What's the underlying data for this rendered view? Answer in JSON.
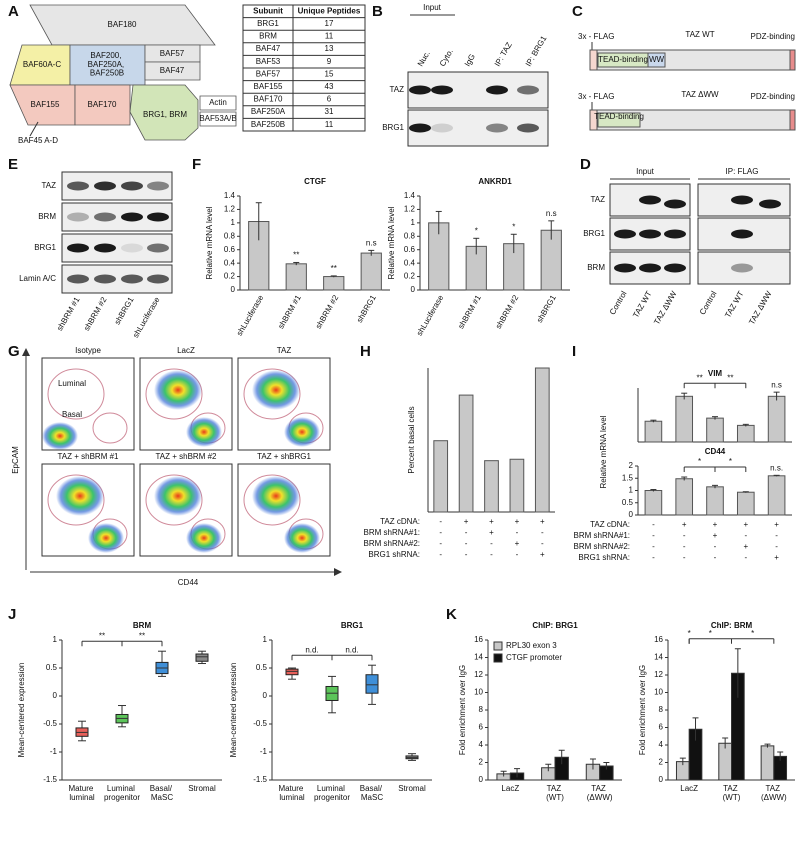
{
  "panel_labels": [
    "A",
    "B",
    "C",
    "D",
    "E",
    "F",
    "G",
    "H",
    "I",
    "J",
    "K"
  ],
  "A": {
    "complex_subunits": [
      "BAF180",
      "BAF60A-C",
      "BAF200, BAF250A, BAF250B",
      "BAF57",
      "BAF47",
      "BAF155",
      "BAF170",
      "BRG1, BRM",
      "Actin",
      "BAF53A/B",
      "BAF45 A-D"
    ],
    "table": {
      "header": [
        "Subunit",
        "Unique Peptides"
      ],
      "rows": [
        [
          "BRG1",
          17
        ],
        [
          "BRM",
          11
        ],
        [
          "BAF47",
          13
        ],
        [
          "BAF53",
          9
        ],
        [
          "BAF57",
          15
        ],
        [
          "BAF155",
          43
        ],
        [
          "BAF170",
          6
        ],
        [
          "BAF250A",
          31
        ],
        [
          "BAF250B",
          11
        ]
      ]
    }
  },
  "B": {
    "input": "Input",
    "lanes": [
      "Nuc.",
      "Cyto.",
      "IgG",
      "IP: TAZ",
      "IP: BRG1"
    ],
    "rows": [
      "TAZ",
      "BRG1"
    ]
  },
  "C": {
    "constructs": [
      {
        "name": "TAZ WT",
        "flag": "3x - FLAG",
        "domains": [
          "TEAD-binding",
          "WW"
        ],
        "end": "PDZ-binding"
      },
      {
        "name": "TAZ ΔWW",
        "flag": "3x - FLAG",
        "domains": [
          "TEAD-binding"
        ],
        "end": "PDZ-binding"
      }
    ]
  },
  "D": {
    "groups": [
      "Input",
      "IP: FLAG"
    ],
    "rows": [
      "TAZ",
      "BRG1",
      "BRM"
    ],
    "lanes": [
      "Control",
      "TAZ WT",
      "TAZ ΔWW",
      "Control",
      "TAZ WT",
      "TAZ ΔWW"
    ]
  },
  "E": {
    "rows": [
      "TAZ",
      "BRM",
      "BRG1",
      "Lamin A/C"
    ],
    "lanes": [
      "shBRM #1",
      "shBRM #2",
      "shBRG1",
      "shLuciferase"
    ]
  },
  "F": {
    "charts": [
      {
        "type": "bar",
        "title": "CTGF",
        "ylabel": "Relative mRNA level",
        "categories": [
          "shLuciferase",
          "shBRM #1",
          "shBRM #2",
          "shBRG1"
        ],
        "values": [
          1.02,
          0.39,
          0.2,
          0.55
        ],
        "errors": [
          0.28,
          0.02,
          0.01,
          0.04
        ],
        "annotations": [
          null,
          "**",
          "**",
          "n.s"
        ],
        "color": "#c8c8c8",
        "ylim": [
          0,
          1.4
        ],
        "yticks": [
          0,
          0.2,
          0.4,
          0.6,
          0.8,
          1,
          1.2,
          1.4
        ]
      },
      {
        "type": "bar",
        "title": "ANKRD1",
        "ylabel": "Relative mRNA level",
        "categories": [
          "shLuciferase",
          "shBRM #1",
          "shBRM #2",
          "shBRG1"
        ],
        "values": [
          1.0,
          0.65,
          0.69,
          0.89
        ],
        "errors": [
          0.17,
          0.12,
          0.14,
          0.14
        ],
        "annotations": [
          null,
          "*",
          "*",
          "n.s"
        ],
        "color": "#c8c8c8",
        "ylim": [
          0,
          1.4
        ],
        "yticks": [
          0,
          0.2,
          0.4,
          0.6,
          0.8,
          1,
          1.2,
          1.4
        ]
      }
    ]
  },
  "G": {
    "plots": [
      "Isotype",
      "LacZ",
      "TAZ",
      "TAZ + shBRM #1",
      "TAZ + shBRM #2",
      "TAZ + shBRG1"
    ],
    "gates": [
      "Luminal",
      "Basal"
    ],
    "ylabel": "EpCAM",
    "xlabel": "CD44"
  },
  "H": {
    "chart": {
      "type": "bar",
      "ylabel": "Percent basal cells",
      "values": [
        25,
        41,
        18,
        18.5,
        50.5
      ],
      "color": "#c8c8c8"
    }
  },
  "I": {
    "ylabel": "Relative mRNA level",
    "charts": [
      {
        "type": "bar",
        "title": "VIM",
        "values": [
          1.0,
          2.2,
          1.15,
          0.8,
          2.2
        ],
        "errors": [
          0.05,
          0.15,
          0.07,
          0.05,
          0.2
        ],
        "annotations": [
          null,
          null,
          "**",
          "**",
          "n.s"
        ],
        "brackets": true,
        "color": "#c8c8c8",
        "ylim": [
          0,
          2.6
        ]
      },
      {
        "type": "bar",
        "title": "CD44",
        "values": [
          1.0,
          1.48,
          1.15,
          0.93,
          1.6
        ],
        "errors": [
          0.04,
          0.07,
          0.06,
          0.02,
          0.02
        ],
        "annotations": [
          null,
          null,
          "*",
          "*",
          "n.s."
        ],
        "brackets": true,
        "color": "#c8c8c8",
        "ylim": [
          0,
          2
        ],
        "yticks": [
          0,
          0.5,
          1,
          1.5,
          2
        ]
      }
    ]
  },
  "conditions": [
    {
      "label": "TAZ cDNA:",
      "values": [
        "-",
        "+",
        "+",
        "+",
        "+"
      ]
    },
    {
      "label": "BRM shRNA#1:",
      "values": [
        "-",
        "-",
        "+",
        "-",
        "-"
      ]
    },
    {
      "label": "BRM shRNA#2:",
      "values": [
        "-",
        "-",
        "-",
        "+",
        "-"
      ]
    },
    {
      "label": "BRG1 shRNA:",
      "values": [
        "-",
        "-",
        "-",
        "-",
        "+"
      ]
    }
  ],
  "J": {
    "charts": [
      {
        "type": "box",
        "title": "BRM",
        "ylabel": "Mean-centered expression",
        "categories": [
          "Mature luminal",
          "Luminal progenitor",
          "Basal/ MaSC",
          "Stromal"
        ],
        "colors": [
          "#e8605a",
          "#5cc45a",
          "#3f8fd8",
          "#8a8a8a"
        ],
        "boxes": [
          {
            "min": -0.8,
            "q1": -0.72,
            "median": -0.65,
            "q3": -0.57,
            "max": -0.45
          },
          {
            "min": -0.55,
            "q1": -0.48,
            "median": -0.4,
            "q3": -0.33,
            "max": -0.17
          },
          {
            "min": 0.35,
            "q1": 0.4,
            "median": 0.5,
            "q3": 0.6,
            "max": 0.8
          },
          {
            "min": 0.58,
            "q1": 0.62,
            "median": 0.7,
            "q3": 0.75,
            "max": 0.8
          }
        ],
        "annotations": [
          null,
          "**",
          "**",
          null
        ],
        "brackets": true,
        "ylim": [
          -1.5,
          1
        ],
        "yticks": [
          -1.5,
          -1,
          -0.5,
          0,
          0.5,
          1
        ]
      },
      {
        "type": "box",
        "title": "BRG1",
        "ylabel": "Mean-centered expression",
        "categories": [
          "Mature luminal",
          "Luminal progenitor",
          "Basal/ MaSC",
          "Stromal"
        ],
        "colors": [
          "#e8605a",
          "#5cc45a",
          "#3f8fd8",
          "#8a8a8a"
        ],
        "boxes": [
          {
            "min": 0.3,
            "q1": 0.38,
            "median": 0.44,
            "q3": 0.48,
            "max": 0.5
          },
          {
            "min": -0.3,
            "q1": -0.08,
            "median": 0.05,
            "q3": 0.17,
            "max": 0.35
          },
          {
            "min": -0.15,
            "q1": 0.05,
            "median": 0.2,
            "q3": 0.38,
            "max": 0.55
          },
          {
            "min": -1.15,
            "q1": -1.12,
            "median": -1.1,
            "q3": -1.07,
            "max": -1.03
          }
        ],
        "annotations": [
          null,
          "n.d.",
          "n.d.",
          null
        ],
        "brackets": true,
        "ylim": [
          -1.5,
          1
        ],
        "yticks": [
          -1.5,
          -1,
          -0.5,
          0,
          0.5,
          1
        ]
      }
    ]
  },
  "K": {
    "charts": [
      {
        "type": "grouped_bar",
        "title": "ChIP: BRG1",
        "ylabel": "Fold enrichment over IgG",
        "categories": [
          "LacZ",
          "TAZ (WT)",
          "TAZ (ΔWW)"
        ],
        "legend": "top-left",
        "series": [
          {
            "name": "RPL30 exon 3",
            "color": "#c8c8c8",
            "values": [
              0.7,
              1.4,
              1.8
            ],
            "errors": [
              0.3,
              0.4,
              0.6
            ]
          },
          {
            "name": "CTGF promoter",
            "color": "#111111",
            "values": [
              0.8,
              2.6,
              1.6
            ],
            "errors": [
              0.5,
              0.8,
              0.4
            ]
          }
        ],
        "ylim": [
          0,
          16
        ],
        "yticks": [
          0,
          2,
          4,
          6,
          8,
          10,
          12,
          14,
          16
        ]
      },
      {
        "type": "grouped_bar",
        "title": "ChIP: BRM",
        "ylabel": "Fold enrichment over IgG",
        "categories": [
          "LacZ",
          "TAZ (WT)",
          "TAZ (ΔWW)"
        ],
        "series": [
          {
            "name": "RPL30 exon 3",
            "color": "#c8c8c8",
            "values": [
              2.1,
              4.2,
              3.9
            ],
            "errors": [
              0.4,
              0.6,
              0.2
            ]
          },
          {
            "name": "CTGF promoter",
            "color": "#111111",
            "values": [
              5.8,
              12.2,
              2.7
            ],
            "errors": [
              1.3,
              2.8,
              0.5
            ]
          }
        ],
        "annotations": [
          "*",
          "*",
          "*"
        ],
        "brackets": true,
        "ylim": [
          0,
          16
        ],
        "yticks": [
          0,
          2,
          4,
          6,
          8,
          10,
          12,
          14,
          16
        ]
      }
    ]
  }
}
